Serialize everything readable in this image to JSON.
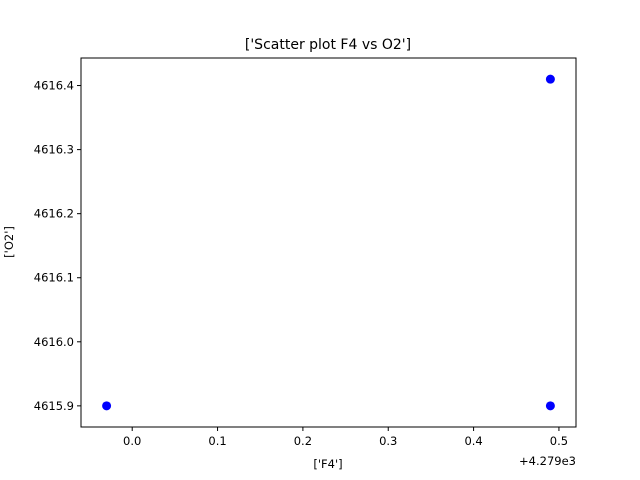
{
  "chart_data": {
    "type": "scatter",
    "title": "['Scatter plot F4 vs O2']",
    "xlabel": "['F4']",
    "ylabel": "['O2']",
    "x_offset_label": "+4.279e3",
    "xlim": [
      -0.06,
      0.52
    ],
    "ylim": [
      4615.867,
      4616.443
    ],
    "x_ticks": [
      0.0,
      0.1,
      0.2,
      0.3,
      0.4,
      0.5
    ],
    "x_tick_labels": [
      "0.0",
      "0.1",
      "0.2",
      "0.3",
      "0.4",
      "0.5"
    ],
    "y_ticks": [
      4615.9,
      4616.0,
      4616.1,
      4616.2,
      4616.3,
      4616.4
    ],
    "y_tick_labels": [
      "4615.9",
      "4616.0",
      "4616.1",
      "4616.2",
      "4616.3",
      "4616.4"
    ],
    "grid": false,
    "series": [
      {
        "color": "#0000ff",
        "points": [
          {
            "x": -0.03,
            "y": 4615.9
          },
          {
            "x": 0.49,
            "y": 4616.41
          },
          {
            "x": 0.49,
            "y": 4615.9
          }
        ]
      }
    ]
  }
}
